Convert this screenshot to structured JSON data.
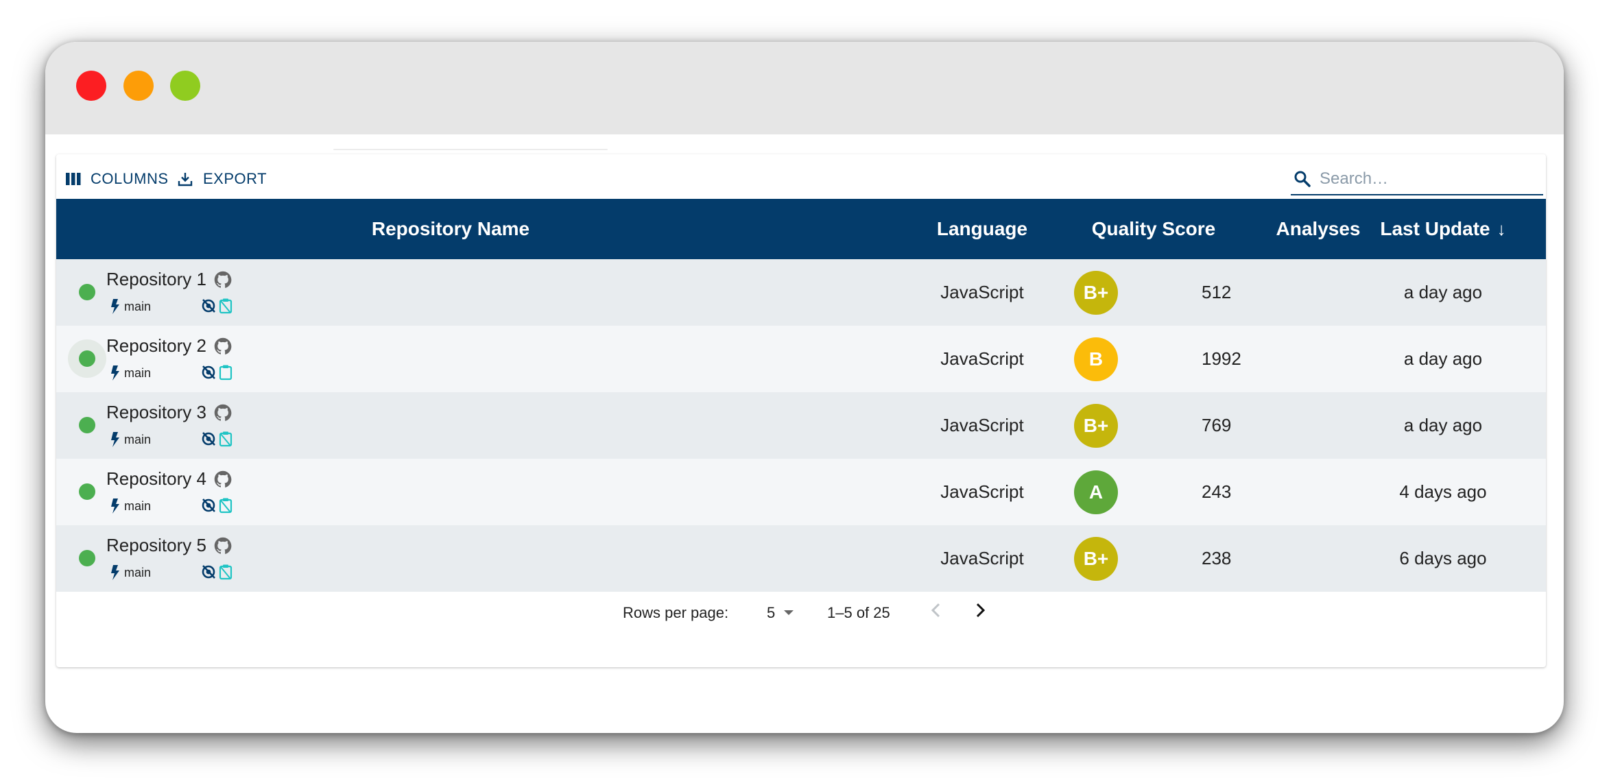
{
  "window": {
    "controls": [
      "close",
      "minimize",
      "maximize"
    ],
    "colors": {
      "close": "#fc1e22",
      "minimize": "#fd9d08",
      "maximize": "#90cc20"
    }
  },
  "toolbar": {
    "columns_label": "COLUMNS",
    "export_label": "EXPORT",
    "search_placeholder": "Search…"
  },
  "table": {
    "headers": {
      "name": "Repository Name",
      "language": "Language",
      "score": "Quality Score",
      "analyses": "Analyses",
      "update": "Last Update"
    },
    "sort": {
      "column": "update",
      "direction": "desc"
    },
    "rows": [
      {
        "name": "Repository 1",
        "branch": "main",
        "language": "JavaScript",
        "score": "B+",
        "score_color": "#c5b60c",
        "analyses": "512",
        "update": "a day ago"
      },
      {
        "name": "Repository 2",
        "branch": "main",
        "language": "JavaScript",
        "score": "B",
        "score_color": "#fbbc0a",
        "analyses": "1992",
        "update": "a day ago"
      },
      {
        "name": "Repository 3",
        "branch": "main",
        "language": "JavaScript",
        "score": "B+",
        "score_color": "#c5b60c",
        "analyses": "769",
        "update": "a day ago"
      },
      {
        "name": "Repository 4",
        "branch": "main",
        "language": "JavaScript",
        "score": "A",
        "score_color": "#5ea83a",
        "analyses": "243",
        "update": "4 days ago"
      },
      {
        "name": "Repository 5",
        "branch": "main",
        "language": "JavaScript",
        "score": "B+",
        "score_color": "#c5b60c",
        "analyses": "238",
        "update": "6 days ago"
      }
    ]
  },
  "pagination": {
    "rows_per_page_label": "Rows per page:",
    "rows_per_page": "5",
    "range": "1–5 of 25"
  },
  "colors": {
    "primary": "#043c6b",
    "status_ok": "#4caf50",
    "accent_icon": "#1fc4c4"
  }
}
